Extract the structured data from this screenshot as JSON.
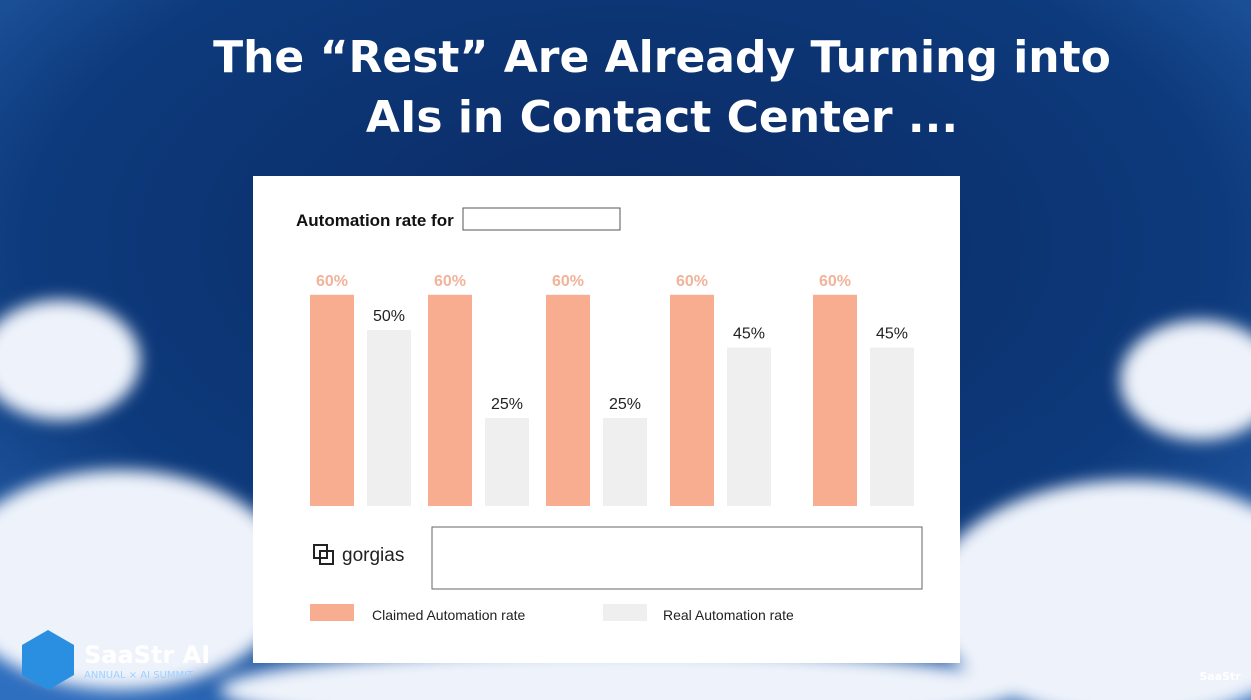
{
  "slide": {
    "title_lines": [
      "The “Rest” Are Already Turning into",
      "AIs in Contact Center ..."
    ]
  },
  "chart_data": {
    "type": "bar",
    "subtitle": "Automation rate for",
    "categories": [
      null,
      null,
      null,
      null,
      null
    ],
    "series": [
      {
        "name": "Claimed Automation rate",
        "color": "#f9ad90",
        "values": [
          60,
          60,
          60,
          60,
          60
        ],
        "value_labels": [
          "60%",
          "60%",
          "60%",
          "60%",
          "60%"
        ]
      },
      {
        "name": "Real Automation rate",
        "color": "#efefef",
        "values": [
          50,
          25,
          25,
          45,
          45
        ],
        "value_labels": [
          "50%",
          "25%",
          "25%",
          "45%",
          "45%"
        ]
      }
    ]
  },
  "logo": {
    "text": "gorgias"
  },
  "branding": {
    "name": "SaaStr AI",
    "tagline": "ANNUAL × AI SUMMIT",
    "corner": "SaaStr"
  }
}
